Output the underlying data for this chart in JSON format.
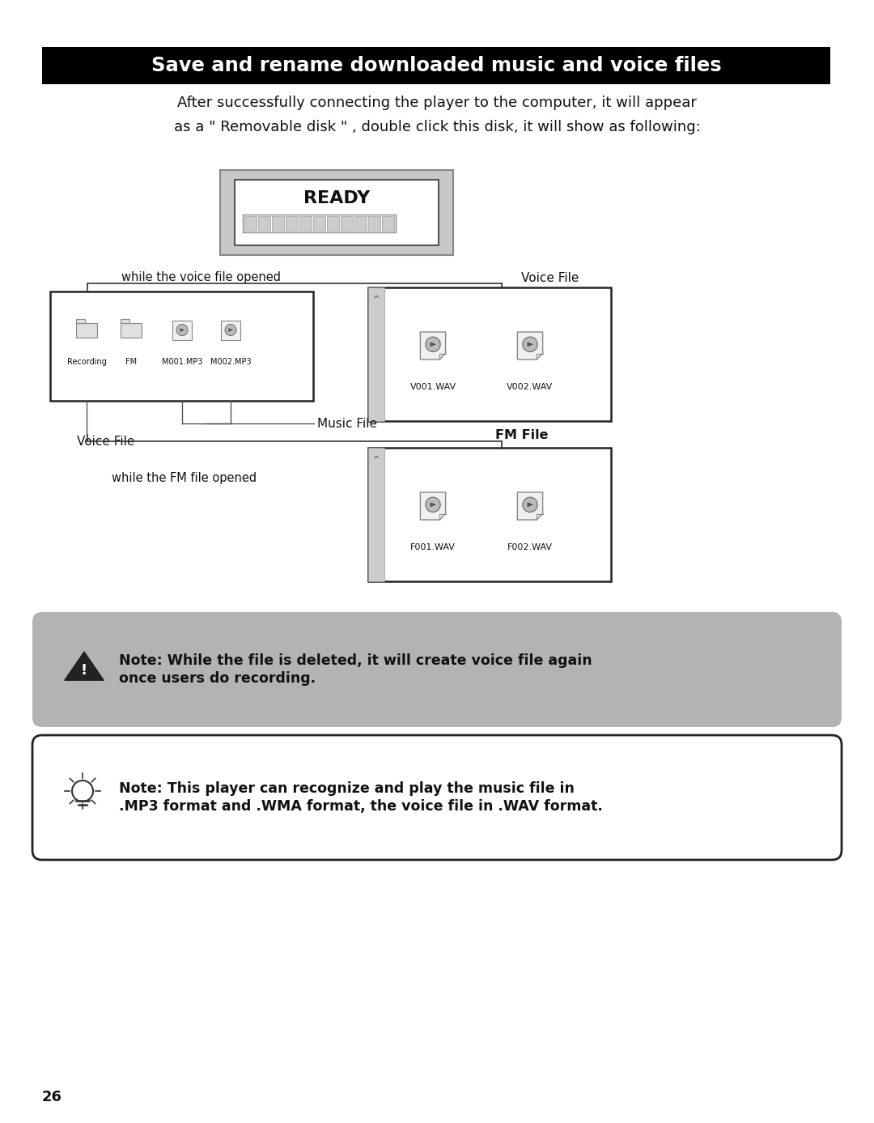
{
  "title": "Save and rename downloaded music and voice files",
  "title_bg": "#000000",
  "title_color": "#ffffff",
  "page_bg": "#ffffff",
  "body_text_line1": "After successfully connecting the player to the computer, it will appear",
  "body_text_line2": "as a \" Removable disk \" , double click this disk, it will show as following:",
  "ready_label": "READY",
  "while_voice_label": "while the voice file opened",
  "while_fm_label": "while the FM file opened",
  "music_file_label": "Music File",
  "voice_file_label_left": "Voice File",
  "voice_file_label_right": "Voice File",
  "fm_file_label": "FM File",
  "left_box_labels": [
    "Recording",
    "FM",
    "M001.MP3",
    "M002.MP3"
  ],
  "voice_box_labels": [
    "V001.WAV",
    "V002.WAV"
  ],
  "fm_box_labels": [
    "F001.WAV",
    "F002.WAV"
  ],
  "note1_text_line1": "Note: While the file is deleted, it will create voice file again",
  "note1_text_line2": "once users do recording.",
  "note2_text_line1": "Note: This player can recognize and play the music file in",
  "note2_text_line2": ".MP3 format and .WMA format, the voice file in .WAV format.",
  "page_number": "26",
  "gray_note_bg": "#b3b3b3",
  "white_note_bg": "#ffffff",
  "note_border": "#222222"
}
